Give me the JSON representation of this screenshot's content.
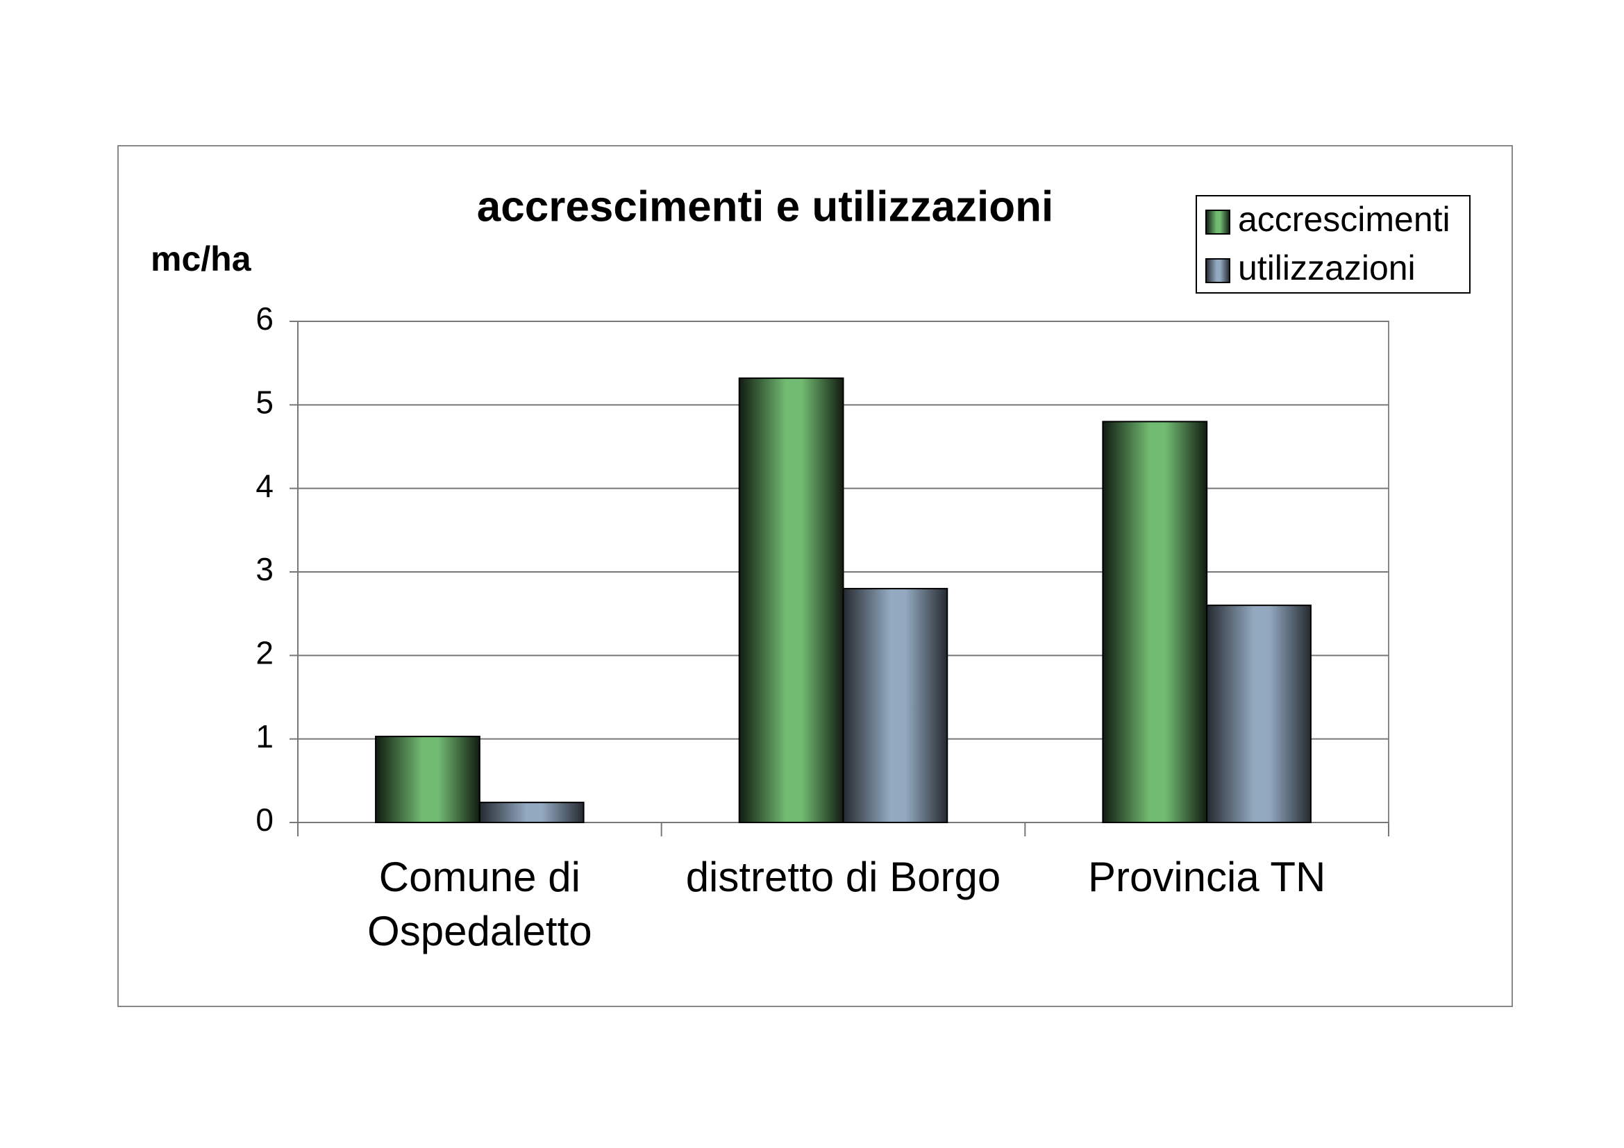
{
  "chart_data": {
    "type": "bar",
    "title": "accrescimenti e utilizzazioni",
    "y_label": "mc/ha",
    "categories": [
      "Comune di Ospedaletto",
      "distretto di Borgo",
      "Provincia TN"
    ],
    "series": [
      {
        "name": "accrescimenti",
        "color": "#72bb72",
        "values": [
          1.03,
          5.32,
          4.8
        ]
      },
      {
        "name": "utilizzazioni",
        "color": "#93a9c0",
        "values": [
          0.24,
          2.8,
          2.6
        ]
      }
    ],
    "ylim": [
      0,
      6
    ],
    "yticks": [
      0,
      1,
      2,
      3,
      4,
      5,
      6
    ],
    "grid": true,
    "legend": "top-right"
  }
}
